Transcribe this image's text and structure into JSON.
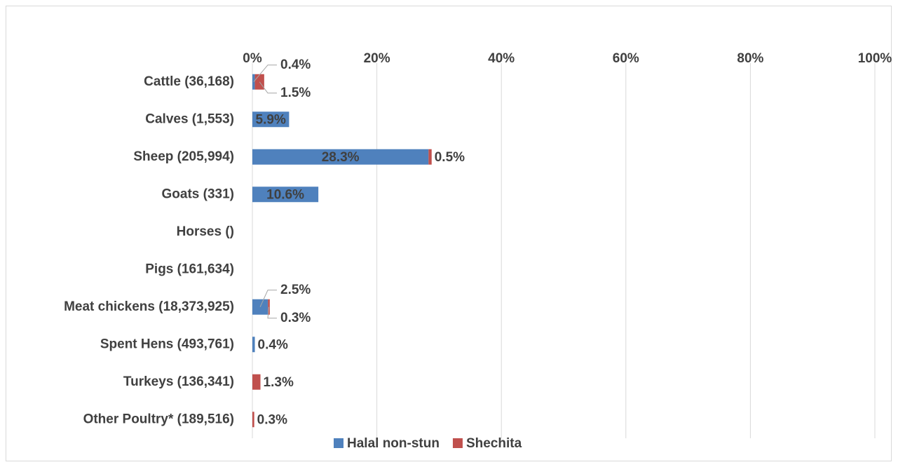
{
  "chart_data": {
    "type": "stacked_barh",
    "categories": [
      "Cattle (36,168)",
      "Calves (1,553)",
      "Sheep (205,994)",
      "Goats (331)",
      "Horses ()",
      "Pigs (161,634)",
      "Meat chickens (18,373,925)",
      "Spent Hens (493,761)",
      "Turkeys (136,341)",
      "Other Poultry* (189,516)"
    ],
    "series": [
      {
        "name": "Halal non-stun",
        "color": "#4f81bd",
        "values": [
          0.4,
          5.9,
          28.3,
          10.6,
          null,
          null,
          2.5,
          0.4,
          null,
          null
        ],
        "value_labels": [
          "0.4%",
          "5.9%",
          "28.3%",
          "10.6%",
          null,
          null,
          "2.5%",
          "0.4%",
          null,
          null
        ]
      },
      {
        "name": "Shechita",
        "color": "#c0504d",
        "values": [
          1.5,
          null,
          0.5,
          null,
          null,
          null,
          0.3,
          null,
          1.3,
          0.3
        ],
        "value_labels": [
          "1.5%",
          null,
          "0.5%",
          null,
          null,
          null,
          "0.3%",
          null,
          "1.3%",
          "0.3%"
        ]
      }
    ],
    "xlim": [
      0,
      100
    ],
    "xticks": [
      {
        "value": 0,
        "label": "0%"
      },
      {
        "value": 20,
        "label": "20%"
      },
      {
        "value": 40,
        "label": "40%"
      },
      {
        "value": 60,
        "label": "60%"
      },
      {
        "value": 80,
        "label": "80%"
      },
      {
        "value": 100,
        "label": "100%"
      }
    ],
    "grid": true,
    "legend": "bottom"
  }
}
